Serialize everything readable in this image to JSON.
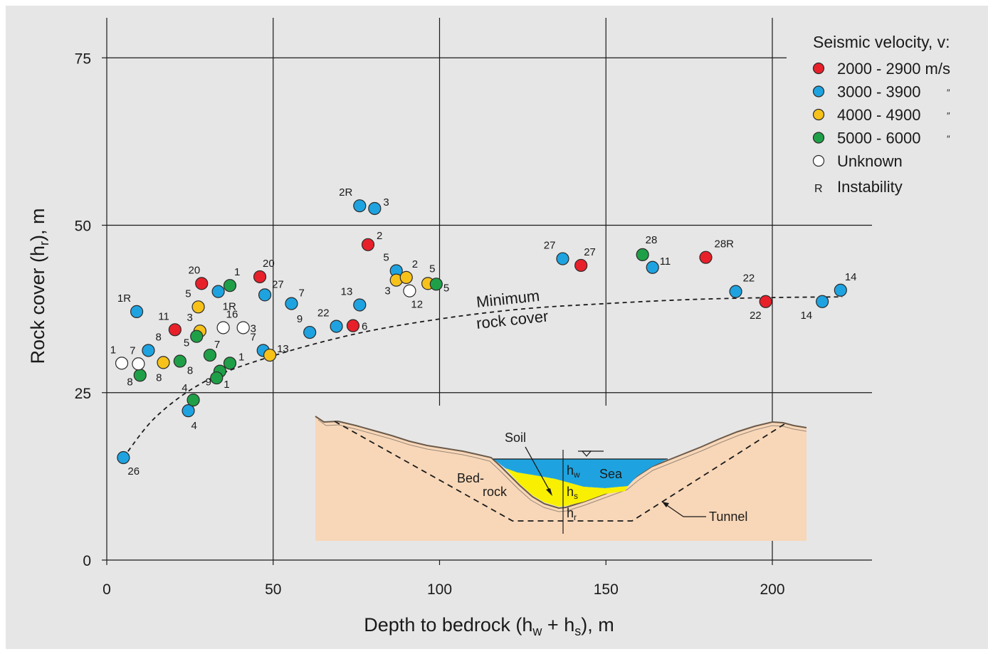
{
  "chart_data": {
    "type": "scatter",
    "xlabel": "Depth to bedrock (h",
    "xlabel_sub1": "w",
    "xlabel_mid": " + h",
    "xlabel_sub2": "s",
    "xlabel_end": "), m",
    "ylabel": "Rock cover (h",
    "ylabel_sub": "r",
    "ylabel_end": "), m",
    "xlim": [
      0,
      230
    ],
    "ylim": [
      0,
      80
    ],
    "x_ticks": [
      "0",
      "50",
      "100",
      "150",
      "200"
    ],
    "y_ticks": [
      "0",
      "25",
      "50",
      "75"
    ],
    "grid": true,
    "legend_position": "top-right",
    "legend": {
      "title": "Seismic velocity, v:",
      "entries": [
        {
          "key": "red",
          "label": "2000 - 2900 m/s",
          "color": "#e8202a"
        },
        {
          "key": "blue",
          "label": "3000 - 3900",
          "ditto": "″",
          "color": "#1ea3e0"
        },
        {
          "key": "yellow",
          "label": "4000 - 4900",
          "ditto": "″",
          "color": "#f6c21a"
        },
        {
          "key": "green",
          "label": "5000 - 6000",
          "ditto": "″",
          "color": "#1fa048"
        },
        {
          "key": "white",
          "label": "Unknown",
          "color": "#ffffff"
        }
      ],
      "instability_symbol": "R",
      "instability_label": "Instability"
    },
    "series": [
      {
        "key": "red",
        "color": "#e8202a",
        "points": [
          {
            "x": 28.5,
            "y": 41.3,
            "label": "20"
          },
          {
            "x": 20.5,
            "y": 34.4,
            "label": "11"
          },
          {
            "x": 46,
            "y": 42.3,
            "label": "20"
          },
          {
            "x": 74,
            "y": 35,
            "label": "6"
          },
          {
            "x": 78.5,
            "y": 47.1,
            "label": "2"
          },
          {
            "x": 142.5,
            "y": 44,
            "label": "27"
          },
          {
            "x": 180,
            "y": 45.2,
            "label": "28R"
          },
          {
            "x": 198,
            "y": 38.6,
            "label": "22"
          }
        ]
      },
      {
        "key": "blue",
        "color": "#1ea3e0",
        "points": [
          {
            "x": 9,
            "y": 37.1,
            "label": "1R"
          },
          {
            "x": 12.5,
            "y": 31.3,
            "label": "8"
          },
          {
            "x": 33.5,
            "y": 40.1,
            "label": "1R"
          },
          {
            "x": 24.5,
            "y": 22.3,
            "label": "4"
          },
          {
            "x": 5,
            "y": 15.3,
            "label": "26"
          },
          {
            "x": 47.5,
            "y": 39.6,
            "label": "27"
          },
          {
            "x": 47,
            "y": 31.3,
            "label": "7"
          },
          {
            "x": 55.5,
            "y": 38.3,
            "label": "7"
          },
          {
            "x": 61,
            "y": 34,
            "label": "9"
          },
          {
            "x": 69,
            "y": 34.9,
            "label": "22"
          },
          {
            "x": 76,
            "y": 38.1,
            "label": "13"
          },
          {
            "x": 76,
            "y": 52.9,
            "label": "2R"
          },
          {
            "x": 80.5,
            "y": 52.5,
            "label": "3"
          },
          {
            "x": 87,
            "y": 43.2,
            "label": "5"
          },
          {
            "x": 137,
            "y": 45,
            "label": "27"
          },
          {
            "x": 164,
            "y": 43.7,
            "label": "11"
          },
          {
            "x": 189,
            "y": 40.1,
            "label": "22"
          },
          {
            "x": 215,
            "y": 38.6,
            "label": "14"
          },
          {
            "x": 220.5,
            "y": 40.3,
            "label": "14"
          }
        ]
      },
      {
        "key": "yellow",
        "color": "#f6c21a",
        "points": [
          {
            "x": 27.5,
            "y": 37.8,
            "label": "5"
          },
          {
            "x": 28,
            "y": 34.2,
            "label": "3"
          },
          {
            "x": 17,
            "y": 29.5,
            "label": "8"
          },
          {
            "x": 49,
            "y": 30.6,
            "label": "13"
          },
          {
            "x": 87,
            "y": 41.8,
            "label": "3"
          },
          {
            "x": 90,
            "y": 42.2,
            "label": "2"
          },
          {
            "x": 96.5,
            "y": 41.3,
            "label": "5"
          }
        ]
      },
      {
        "key": "green",
        "color": "#1fa048",
        "points": [
          {
            "x": 37,
            "y": 41,
            "label": "1"
          },
          {
            "x": 27,
            "y": 33.4,
            "label": "5"
          },
          {
            "x": 31,
            "y": 30.6,
            "label": "7"
          },
          {
            "x": 22,
            "y": 29.7,
            "label": "8"
          },
          {
            "x": 10,
            "y": 27.6,
            "label": "8"
          },
          {
            "x": 34,
            "y": 28.2,
            "label": "9"
          },
          {
            "x": 37,
            "y": 29.4,
            "label": "1"
          },
          {
            "x": 33,
            "y": 27.2,
            "label": "1"
          },
          {
            "x": 26,
            "y": 23.9,
            "label": "4"
          },
          {
            "x": 99,
            "y": 41.2,
            "label": "5"
          },
          {
            "x": 161,
            "y": 45.6,
            "label": "28"
          }
        ]
      },
      {
        "key": "white",
        "color": "#ffffff",
        "points": [
          {
            "x": 4.5,
            "y": 29.4,
            "label": "1"
          },
          {
            "x": 9.5,
            "y": 29.3,
            "label": "7"
          },
          {
            "x": 35,
            "y": 34.7,
            "label": "16"
          },
          {
            "x": 41,
            "y": 34.7,
            "label": "3"
          },
          {
            "x": 91,
            "y": 40.2,
            "label": "12"
          }
        ]
      }
    ],
    "curve": {
      "label_line1": "Minimum",
      "label_line2": "rock cover",
      "style": "dashed",
      "points": [
        [
          5,
          15.3
        ],
        [
          15,
          21.5
        ],
        [
          30,
          26.8
        ],
        [
          50,
          30.5
        ],
        [
          75,
          33.8
        ],
        [
          100,
          36
        ],
        [
          125,
          37.5
        ],
        [
          150,
          38.3
        ],
        [
          175,
          38.9
        ],
        [
          200,
          39.2
        ],
        [
          221,
          39.3
        ]
      ]
    },
    "inset": {
      "labels": {
        "soil": "Soil",
        "sea": "Sea",
        "bedrock_line1": "Bed-",
        "bedrock_line2": "rock",
        "tunnel": "Tunnel",
        "hw": "h",
        "hw_sub": "w",
        "hs": "h",
        "hs_sub": "s",
        "hr": "h",
        "hr_sub": "r"
      },
      "colors": {
        "rock": "#f8d7b8",
        "sea": "#1ea3e0",
        "soil": "#f8f000"
      }
    }
  }
}
